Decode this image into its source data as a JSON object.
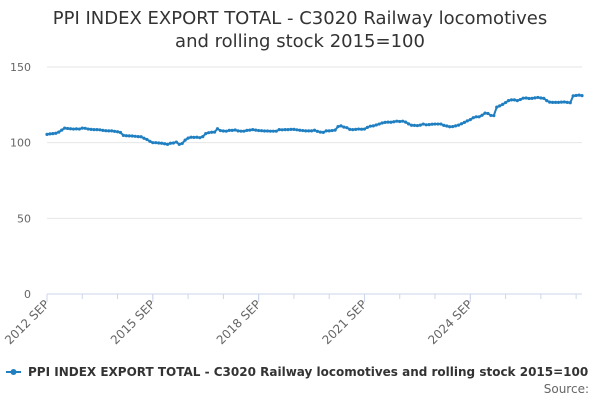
{
  "chart_data": {
    "type": "line",
    "title_lines": [
      "PPI INDEX EXPORT TOTAL - C3020 Railway locomotives",
      "and rolling stock 2015=100"
    ],
    "xlabel": "",
    "ylabel": "",
    "ylim": [
      0,
      150
    ],
    "y_ticks": [
      0,
      50,
      100,
      150
    ],
    "x_tick_labels": [
      "2012 SEP",
      "2015 SEP",
      "2018 SEP",
      "2021 SEP",
      "2024 SEP"
    ],
    "x_start": "2012 SEP",
    "x_end": "2024 SEP",
    "frequency": "monthly",
    "grid": "horizontal",
    "legend_position": "bottom",
    "series": [
      {
        "name": "PPI INDEX EXPORT TOTAL - C3020 Railway locomotives and rolling stock 2015=100",
        "color": "#1f7fc1",
        "values": [
          105.5,
          105.8,
          106.0,
          106.2,
          107.0,
          108.3,
          109.6,
          109.4,
          109.2,
          109.0,
          109.1,
          109.0,
          109.6,
          109.5,
          109.0,
          108.8,
          108.6,
          108.6,
          108.5,
          108.1,
          107.9,
          107.8,
          107.8,
          107.5,
          107.2,
          106.7,
          104.8,
          104.6,
          104.5,
          104.4,
          104.2,
          104.0,
          103.9,
          102.9,
          102.1,
          100.9,
          100.0,
          100.0,
          99.8,
          99.6,
          99.3,
          98.9,
          99.6,
          99.8,
          100.4,
          98.9,
          99.5,
          101.7,
          103.0,
          103.6,
          103.5,
          103.6,
          103.3,
          104.0,
          106.0,
          106.6,
          106.9,
          107.0,
          109.2,
          108.0,
          107.7,
          107.6,
          108.1,
          108.1,
          108.4,
          107.8,
          107.6,
          107.6,
          108.1,
          108.3,
          108.6,
          108.3,
          108.0,
          107.9,
          107.7,
          107.7,
          107.6,
          107.6,
          107.6,
          108.6,
          108.5,
          108.6,
          108.6,
          108.8,
          108.8,
          108.5,
          108.2,
          108.0,
          107.8,
          107.8,
          107.8,
          108.2,
          107.5,
          107.0,
          106.8,
          107.8,
          107.8,
          108.0,
          108.3,
          110.6,
          111.1,
          110.3,
          109.9,
          108.8,
          108.6,
          108.8,
          109.0,
          108.9,
          109.0,
          110.1,
          110.9,
          111.1,
          111.7,
          112.3,
          113.0,
          113.4,
          113.6,
          113.5,
          113.8,
          114.2,
          114.0,
          114.2,
          113.6,
          112.4,
          111.5,
          111.4,
          111.3,
          111.6,
          112.3,
          111.8,
          111.9,
          112.2,
          112.3,
          112.3,
          112.3,
          111.4,
          111.0,
          110.5,
          110.6,
          111.1,
          111.6,
          112.5,
          113.4,
          114.4,
          115.2,
          116.5,
          117.1,
          117.1,
          118.1,
          119.5,
          119.3,
          118.0,
          117.9,
          123.5,
          124.3,
          125.3,
          126.5,
          127.8,
          128.3,
          128.3,
          127.8,
          128.5,
          129.4,
          129.5,
          129.2,
          129.3,
          129.6,
          129.9,
          129.5,
          129.3,
          127.8,
          126.8,
          126.6,
          126.6,
          126.6,
          126.8,
          126.9,
          126.6,
          126.4,
          130.9,
          131.2,
          131.4,
          131.1
        ]
      }
    ]
  },
  "footer": {
    "source_label": "Source:"
  }
}
